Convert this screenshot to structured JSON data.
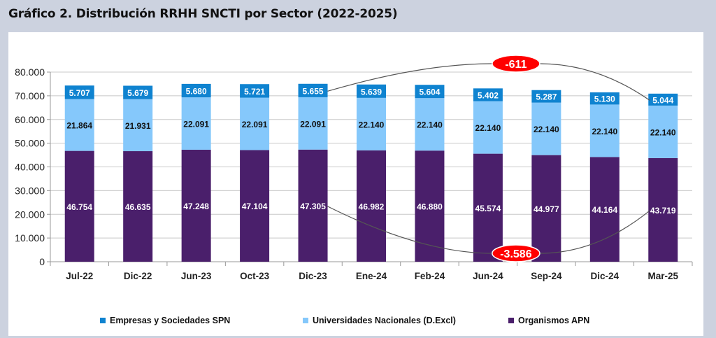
{
  "title": "Gráfico 2. Distribución RRHH SNCTI por Sector (2022-2025)",
  "colors": {
    "background": "#ccd2df",
    "panel": "#ffffff",
    "empresas": "#0f83d0",
    "universidades": "#85c8fb",
    "organismos": "#4a1f6b",
    "annotation": "#ff0000",
    "grid": "#c8c8c8"
  },
  "legend": [
    {
      "name": "Empresas y Sociedades SPN",
      "color": "#0f83d0"
    },
    {
      "name": "Universidades Nacionales (D.Excl)",
      "color": "#85c8fb"
    },
    {
      "name": "Organismos APN",
      "color": "#4a1f6b"
    }
  ],
  "chart_data": {
    "type": "bar",
    "stacked": true,
    "title": "Gráfico 2. Distribución RRHH SNCTI por Sector (2022-2025)",
    "xlabel": "",
    "ylabel": "",
    "ylim": [
      0,
      80000
    ],
    "yticks": [
      0,
      10000,
      20000,
      30000,
      40000,
      50000,
      60000,
      70000,
      80000
    ],
    "ytick_labels": [
      "0",
      "10.000",
      "20.000",
      "30.000",
      "40.000",
      "50.000",
      "60.000",
      "70.000",
      "80.000"
    ],
    "grid": true,
    "legend_position": "bottom",
    "categories": [
      "Jul-22",
      "Dic-22",
      "Jun-23",
      "Oct-23",
      "Dic-23",
      "Ene-24",
      "Feb-24",
      "Jun-24",
      "Sep-24",
      "Dic-24",
      "Mar-25"
    ],
    "series": [
      {
        "name": "Organismos APN",
        "color": "#4a1f6b",
        "label_color": "#ffffff",
        "values": [
          46754,
          46635,
          47248,
          47104,
          47305,
          46982,
          46880,
          45574,
          44977,
          44164,
          43719
        ],
        "labels": [
          "46.754",
          "46.635",
          "47.248",
          "47.104",
          "47.305",
          "46.982",
          "46.880",
          "45.574",
          "44.977",
          "44.164",
          "43.719"
        ]
      },
      {
        "name": "Universidades Nacionales (D.Excl)",
        "color": "#85c8fb",
        "label_color": "#111111",
        "values": [
          21864,
          21931,
          22091,
          22091,
          22091,
          22140,
          22140,
          22140,
          22140,
          22140,
          22140
        ],
        "labels": [
          "21.864",
          "21.931",
          "22.091",
          "22.091",
          "22.091",
          "22.140",
          "22.140",
          "22.140",
          "22.140",
          "22.140",
          "22.140"
        ]
      },
      {
        "name": "Empresas y Sociedades SPN",
        "color": "#0f83d0",
        "label_color": "#ffffff",
        "values": [
          5707,
          5679,
          5680,
          5721,
          5655,
          5639,
          5604,
          5402,
          5287,
          5130,
          5044
        ],
        "labels": [
          "5.707",
          "5.679",
          "5.680",
          "5.721",
          "5.655",
          "5.639",
          "5.604",
          "5.402",
          "5.287",
          "5.130",
          "5.044"
        ]
      }
    ],
    "annotations": [
      {
        "text": "-611",
        "series": "Empresas y Sociedades SPN",
        "from": "Dic-23",
        "to": "Mar-25",
        "value": -611,
        "placement": "above"
      },
      {
        "text": "-3.586",
        "series": "Organismos APN",
        "from": "Dic-23",
        "to": "Mar-25",
        "value": -3586,
        "placement": "below"
      }
    ]
  }
}
